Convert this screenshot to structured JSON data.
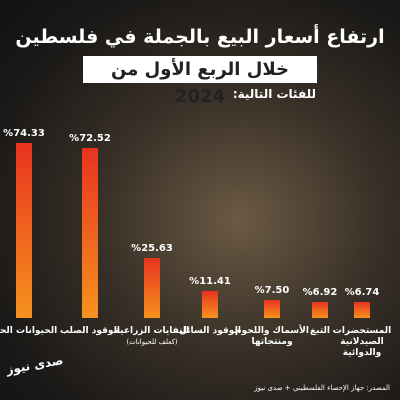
{
  "chart_data": {
    "type": "bar",
    "title": "ارتفاع أسعار البيع بالجملة في فلسطين",
    "subtitle": "خلال الربع الأول من 2024",
    "caption": "للفئات التالية:",
    "categories": [
      "الحيوانات الحية",
      "الوقود الصلب",
      "النفايات الزراعية",
      "الوقود السائل",
      "الأسماك واللحوم ومنتجاتها",
      "التبغ",
      "المستحضرات الصيدلانية والدوائية"
    ],
    "category_notes": {
      "2": "(كعلف للحيوانات)"
    },
    "values": [
      74.33,
      72.52,
      25.63,
      11.41,
      7.5,
      6.92,
      6.74
    ],
    "value_labels": [
      "%74.33",
      "%72.52",
      "%25.63",
      "%11.41",
      "%7.50",
      "%6.92",
      "%6.74"
    ],
    "color": "#e8331f",
    "ylim": [
      0,
      80
    ],
    "source": "المصدر: جهاز الإحصاء الفلسطيني + صدى نيوز",
    "logo": "صدى نيوز"
  }
}
